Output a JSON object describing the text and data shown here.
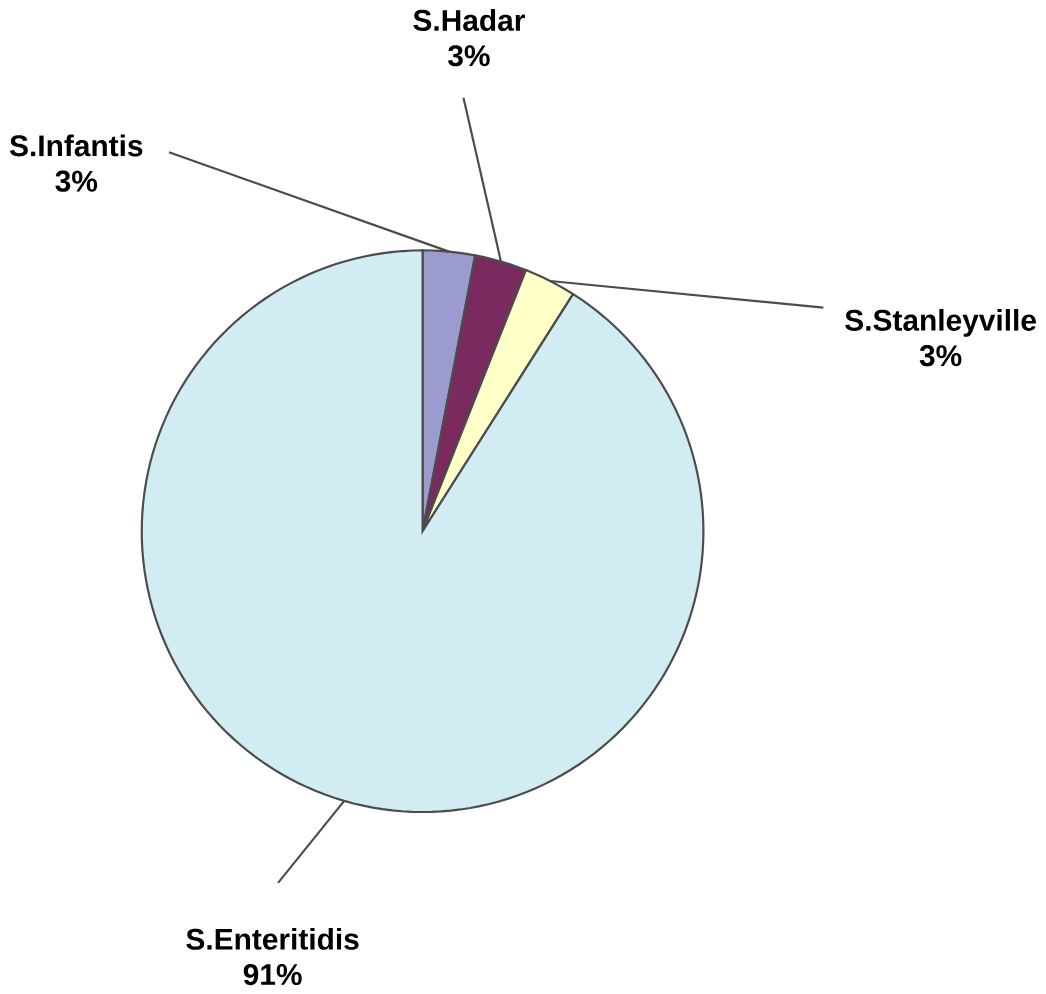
{
  "chart_data": {
    "type": "pie",
    "categories": [
      "S.Infantis",
      "S.Hadar",
      "S.Stanleyville",
      "S.Enteritidis"
    ],
    "values": [
      3,
      3,
      3,
      91
    ],
    "value_labels": [
      "3%",
      "3%",
      "3%",
      "91%"
    ],
    "colors": [
      "#9b9bd0",
      "#7a2a5e",
      "#ffffc8",
      "#d2ecf4"
    ]
  }
}
